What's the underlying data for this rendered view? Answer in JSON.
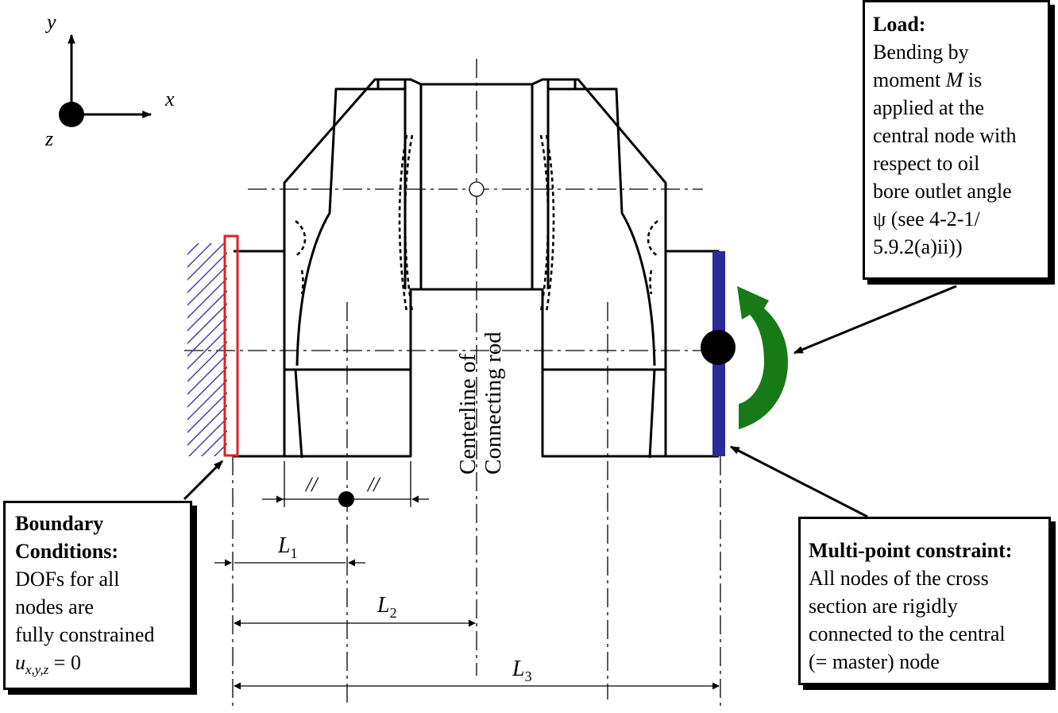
{
  "axes": {
    "y": "y",
    "x": "x",
    "z": "z"
  },
  "centerline_label": [
    "Centerline of",
    "Connecting rod"
  ],
  "load": {
    "title": "Load:",
    "lines": [
      "Bending by",
      "moment ",
      "applied at the",
      "central node with",
      "respect to oil",
      "bore outlet angle",
      "ψ  (see 4-2-1/",
      "5.9.2(a)ii))"
    ],
    "moment_symbol": "M",
    "moment_suffix": " is"
  },
  "boundary": {
    "title_1": "Boundary",
    "title_2": "Conditions:",
    "lines": [
      "DOFs for all",
      "nodes are",
      "fully constrained"
    ],
    "eq_var": "u",
    "eq_sub": "x,y,z",
    "eq_rest": " = 0"
  },
  "mpc": {
    "title": "Multi-point constraint:",
    "lines": [
      "All nodes of the cross",
      "section are rigidly",
      "connected to the central",
      "(= master) node"
    ]
  },
  "dims": {
    "equal_mark": "//",
    "L1": {
      "main": "L",
      "sub": "1"
    },
    "L2": {
      "main": "L",
      "sub": "2"
    },
    "L3": {
      "main": "L",
      "sub": "3"
    }
  },
  "colors": {
    "hatch": "#3a3aa0",
    "fixed_face": "#e02020",
    "mpc_bar": "#2b2b9a",
    "moment_arrow": "#177a17"
  }
}
